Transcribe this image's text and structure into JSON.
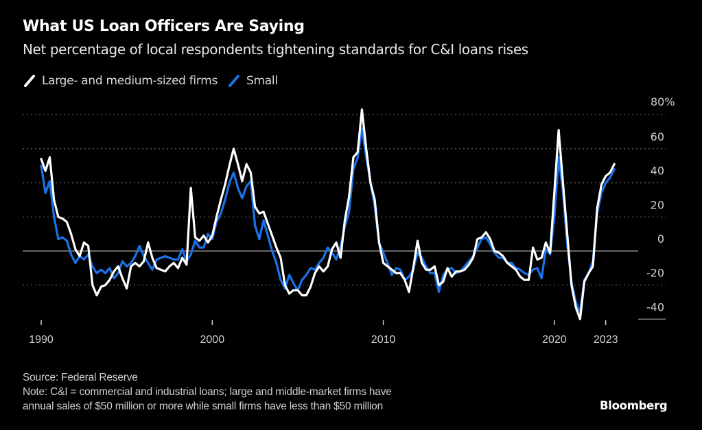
{
  "header": {
    "title": "What US Loan Officers Are Saying",
    "subtitle": "Net percentage of local respondents tightening standards for C&I loans rises"
  },
  "footer": {
    "source": "Source: Federal Reserve",
    "note_line1": "Note: C&I = commercial and industrial loans; large and middle-market firms have",
    "note_line2": "annual sales of $50 million or more while small firms have less than $50 million",
    "logo": "Bloomberg"
  },
  "colors": {
    "background": "#000000",
    "large": "#ffffff",
    "small": "#1a73e8",
    "grid": "#6a6a6a",
    "zero_line": "#8a8a8a"
  },
  "chart_data": {
    "type": "line",
    "title": "What US Loan Officers Are Saying",
    "subtitle": "Net percentage of local respondents tightening standards for C&I loans rises",
    "xlabel": "",
    "ylabel": "",
    "x_start": 1990.0,
    "x_step": 0.25,
    "xlim": [
      1990,
      2023.5
    ],
    "ylim": [
      -40,
      80
    ],
    "y_ticks": [
      80,
      60,
      40,
      20,
      0,
      -20,
      -40
    ],
    "y_tick_labels": [
      "80%",
      "60",
      "40",
      "20",
      "0",
      "-20",
      "-40"
    ],
    "x_ticks": [
      1990,
      2000,
      2010,
      2020,
      2023
    ],
    "x_tick_labels": [
      "1990",
      "2000",
      "2010",
      "2020",
      "2023"
    ],
    "grid": true,
    "legend_position": "top-left",
    "series": [
      {
        "name": "Large- and medium-sized firms",
        "color": "#ffffff",
        "values": [
          54,
          47,
          55,
          30,
          20,
          19,
          17,
          10,
          1,
          -3,
          5,
          3,
          -20,
          -26,
          -21,
          -20,
          -17,
          -12,
          -9,
          -16,
          -22,
          -9,
          -7,
          -9,
          -6,
          5,
          -4,
          -10,
          -11,
          -12,
          -9,
          -7,
          -10,
          -4,
          -8,
          37,
          8,
          6,
          9,
          5,
          9,
          20,
          30,
          39,
          50,
          60,
          51,
          41,
          51,
          46,
          26,
          22,
          23,
          16,
          9,
          2,
          -4,
          -20,
          -25,
          -23,
          -23,
          -26,
          -26,
          -21,
          -13,
          -9,
          -12,
          -9,
          1,
          5,
          -4,
          18,
          32,
          55,
          58,
          83,
          60,
          40,
          30,
          5,
          -7,
          -9,
          -11,
          -13,
          -13,
          -17,
          -24,
          -10,
          6,
          -7,
          -11,
          -11,
          -9,
          -20,
          -18,
          -10,
          -15,
          -12,
          -12,
          -11,
          -8,
          -4,
          7,
          8,
          11,
          7,
          0,
          -1,
          -3,
          -7,
          -9,
          -11,
          -15,
          -17,
          -17,
          2,
          -5,
          -4,
          5,
          -1,
          35,
          71,
          40,
          10,
          -20,
          -33,
          -40,
          -18,
          -13,
          -9,
          25,
          39,
          44,
          46,
          51
        ]
      },
      {
        "name": "Small",
        "color": "#1a73e8",
        "values": [
          50,
          34,
          41,
          20,
          7,
          8,
          6,
          -2,
          -7,
          -3,
          -5,
          -2,
          -9,
          -13,
          -11,
          -13,
          -10,
          -16,
          -13,
          -6,
          -9,
          -7,
          -3,
          3,
          -3,
          -7,
          -11,
          -5,
          -4,
          -3,
          -4,
          -5,
          -5,
          1,
          -6,
          -2,
          6,
          2,
          2,
          10,
          7,
          17,
          22,
          30,
          40,
          46,
          37,
          31,
          38,
          41,
          15,
          7,
          18,
          9,
          0,
          -7,
          -17,
          -22,
          -14,
          -19,
          -23,
          -17,
          -14,
          -10,
          -11,
          -7,
          -4,
          2,
          -1,
          -5,
          3,
          14,
          23,
          48,
          55,
          72,
          55,
          40,
          26,
          5,
          -1,
          -7,
          -14,
          -10,
          -11,
          -17,
          -15,
          -11,
          -1,
          -4,
          -9,
          -13,
          -13,
          -24,
          -14,
          -11,
          -10,
          -13,
          -12,
          -9,
          -6,
          -3,
          2,
          7,
          8,
          4,
          -1,
          -4,
          -4,
          -7,
          -7,
          -10,
          -11,
          -13,
          -14,
          -11,
          -10,
          -16,
          1,
          -2,
          20,
          55,
          35,
          4,
          -18,
          -30,
          -36,
          -17,
          -13,
          -6,
          22,
          34,
          40,
          43,
          48
        ]
      }
    ]
  }
}
